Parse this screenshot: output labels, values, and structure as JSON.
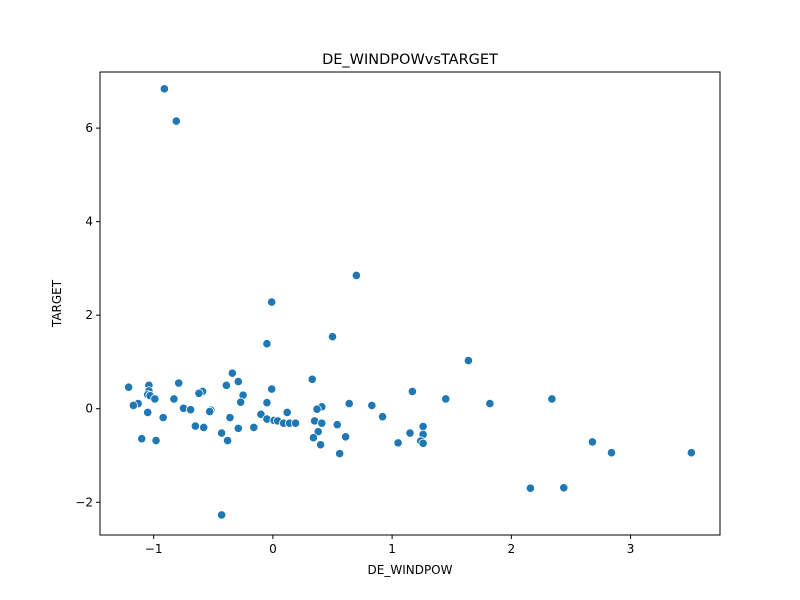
{
  "chart_data": {
    "type": "scatter",
    "title": "DE_WINDPOWvsTARGET",
    "xlabel": "DE_WINDPOW",
    "ylabel": "TARGET",
    "xlim": [
      -1.45,
      3.75
    ],
    "ylim": [
      -2.7,
      7.2
    ],
    "xticks": [
      -1,
      0,
      1,
      2,
      3
    ],
    "yticks": [
      -2,
      0,
      2,
      4,
      6
    ],
    "grid": false,
    "colors": {
      "point": "#1f77b4"
    },
    "points": [
      {
        "x": -0.91,
        "y": 6.84
      },
      {
        "x": -0.81,
        "y": 6.15
      },
      {
        "x": 0.7,
        "y": 2.85
      },
      {
        "x": -0.01,
        "y": 2.28
      },
      {
        "x": 0.5,
        "y": 1.54
      },
      {
        "x": -0.05,
        "y": 1.39
      },
      {
        "x": 1.64,
        "y": 1.03
      },
      {
        "x": -0.34,
        "y": 0.76
      },
      {
        "x": 0.33,
        "y": 0.63
      },
      {
        "x": -0.29,
        "y": 0.58
      },
      {
        "x": -0.79,
        "y": 0.55
      },
      {
        "x": -1.04,
        "y": 0.5
      },
      {
        "x": -0.39,
        "y": 0.5
      },
      {
        "x": -1.21,
        "y": 0.46
      },
      {
        "x": -0.01,
        "y": 0.42
      },
      {
        "x": -1.04,
        "y": 0.38
      },
      {
        "x": -0.59,
        "y": 0.37
      },
      {
        "x": 1.17,
        "y": 0.37
      },
      {
        "x": -0.62,
        "y": 0.33
      },
      {
        "x": -1.05,
        "y": 0.3
      },
      {
        "x": -1.03,
        "y": 0.28
      },
      {
        "x": -0.25,
        "y": 0.29
      },
      {
        "x": 2.34,
        "y": 0.21
      },
      {
        "x": -0.99,
        "y": 0.21
      },
      {
        "x": -0.83,
        "y": 0.21
      },
      {
        "x": 1.45,
        "y": 0.21
      },
      {
        "x": -0.27,
        "y": 0.14
      },
      {
        "x": -0.05,
        "y": 0.13
      },
      {
        "x": 0.64,
        "y": 0.11
      },
      {
        "x": -1.13,
        "y": 0.11
      },
      {
        "x": 1.82,
        "y": 0.11
      },
      {
        "x": -1.17,
        "y": 0.07
      },
      {
        "x": 0.83,
        "y": 0.07
      },
      {
        "x": 0.41,
        "y": 0.04
      },
      {
        "x": -0.75,
        "y": 0.01
      },
      {
        "x": 0.37,
        "y": -0.01
      },
      {
        "x": -0.69,
        "y": -0.02
      },
      {
        "x": -0.52,
        "y": -0.03
      },
      {
        "x": -0.53,
        "y": -0.06
      },
      {
        "x": -1.05,
        "y": -0.08
      },
      {
        "x": 0.12,
        "y": -0.08
      },
      {
        "x": -0.1,
        "y": -0.12
      },
      {
        "x": 0.92,
        "y": -0.17
      },
      {
        "x": -0.92,
        "y": -0.19
      },
      {
        "x": -0.36,
        "y": -0.19
      },
      {
        "x": -0.05,
        "y": -0.22
      },
      {
        "x": 0.01,
        "y": -0.25
      },
      {
        "x": 0.04,
        "y": -0.26
      },
      {
        "x": 0.35,
        "y": -0.26
      },
      {
        "x": 0.09,
        "y": -0.31
      },
      {
        "x": 0.14,
        "y": -0.31
      },
      {
        "x": 0.19,
        "y": -0.31
      },
      {
        "x": 0.41,
        "y": -0.31
      },
      {
        "x": 0.54,
        "y": -0.34
      },
      {
        "x": -0.65,
        "y": -0.37
      },
      {
        "x": 1.26,
        "y": -0.38
      },
      {
        "x": -0.58,
        "y": -0.4
      },
      {
        "x": -0.16,
        "y": -0.4
      },
      {
        "x": -0.29,
        "y": -0.42
      },
      {
        "x": 0.38,
        "y": -0.49
      },
      {
        "x": -0.43,
        "y": -0.52
      },
      {
        "x": 1.15,
        "y": -0.52
      },
      {
        "x": 1.26,
        "y": -0.55
      },
      {
        "x": 0.61,
        "y": -0.6
      },
      {
        "x": 0.34,
        "y": -0.62
      },
      {
        "x": -1.1,
        "y": -0.64
      },
      {
        "x": -0.98,
        "y": -0.68
      },
      {
        "x": -0.38,
        "y": -0.68
      },
      {
        "x": 1.24,
        "y": -0.69
      },
      {
        "x": 2.68,
        "y": -0.71
      },
      {
        "x": 1.05,
        "y": -0.73
      },
      {
        "x": 1.26,
        "y": -0.74
      },
      {
        "x": 0.4,
        "y": -0.77
      },
      {
        "x": 2.84,
        "y": -0.94
      },
      {
        "x": 3.51,
        "y": -0.94
      },
      {
        "x": 0.56,
        "y": -0.96
      },
      {
        "x": 2.16,
        "y": -1.7
      },
      {
        "x": 2.44,
        "y": -1.69
      },
      {
        "x": -0.43,
        "y": -2.27
      }
    ]
  }
}
